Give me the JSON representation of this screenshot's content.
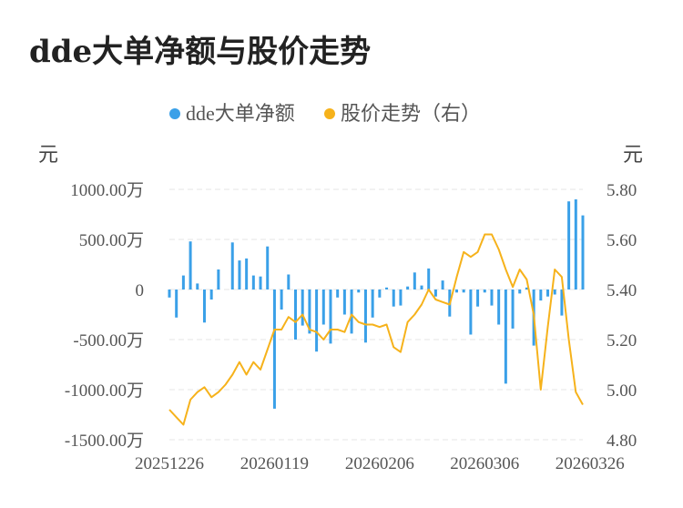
{
  "chart_data": {
    "type": "bar",
    "title": "dde大单净额与股价走势",
    "legend": {
      "position": "top-center",
      "items": [
        {
          "name": "dde大单净额",
          "color": "#3aa0e8"
        },
        {
          "name": "股价走势（右）",
          "color": "#f6b21b"
        }
      ]
    },
    "left_axis": {
      "unit": "元",
      "ylim": [
        -1500,
        1000
      ],
      "ticks": [
        1000,
        500,
        0,
        -500,
        -1000,
        -1500
      ],
      "tick_labels": [
        "1000.00万",
        "500.00万",
        "0",
        "-500.00万",
        "-1000.00万",
        "-1500.00万"
      ]
    },
    "right_axis": {
      "unit": "元",
      "ylim": [
        4.8,
        5.8
      ],
      "ticks": [
        5.8,
        5.6,
        5.4,
        5.2,
        5.0,
        4.8
      ],
      "tick_labels": [
        "5.80",
        "5.60",
        "5.40",
        "5.20",
        "5.00",
        "4.80"
      ]
    },
    "x_tick_labels": [
      {
        "index": 0,
        "label": "20251226"
      },
      {
        "index": 15,
        "label": "20260119"
      },
      {
        "index": 30,
        "label": "20260206"
      },
      {
        "index": 45,
        "label": "20260306"
      },
      {
        "index": 60,
        "label": "20260326"
      }
    ],
    "grid": true,
    "series": [
      {
        "name": "dde大单净额",
        "type": "bar",
        "axis": "left",
        "color": "#3aa0e8",
        "values": [
          -80,
          -280,
          140,
          480,
          60,
          -330,
          -100,
          200,
          0,
          470,
          290,
          310,
          140,
          130,
          430,
          -1190,
          -200,
          150,
          -500,
          -360,
          -440,
          -620,
          -350,
          -540,
          -80,
          -250,
          -440,
          -30,
          -530,
          -280,
          -80,
          20,
          -170,
          -160,
          30,
          170,
          40,
          210,
          -70,
          90,
          -270,
          -30,
          -30,
          -450,
          -170,
          -30,
          -160,
          -350,
          -940,
          -390,
          -40,
          20,
          -560,
          -110,
          -70,
          -50,
          -260,
          880,
          900,
          740
        ]
      },
      {
        "name": "股价走势（右）",
        "type": "line",
        "axis": "right",
        "color": "#f6b21b",
        "values": [
          4.92,
          4.89,
          4.86,
          4.96,
          4.99,
          5.01,
          4.97,
          4.99,
          5.02,
          5.06,
          5.11,
          5.06,
          5.11,
          5.08,
          5.16,
          5.24,
          5.24,
          5.29,
          5.27,
          5.3,
          5.24,
          5.23,
          5.2,
          5.24,
          5.24,
          5.23,
          5.3,
          5.27,
          5.26,
          5.26,
          5.25,
          5.26,
          5.17,
          5.15,
          5.27,
          5.3,
          5.34,
          5.4,
          5.36,
          5.35,
          5.34,
          5.45,
          5.55,
          5.53,
          5.55,
          5.62,
          5.62,
          5.56,
          5.48,
          5.41,
          5.48,
          5.44,
          5.3,
          5.0,
          5.25,
          5.48,
          5.45,
          5.2,
          4.99,
          4.94
        ]
      }
    ]
  }
}
